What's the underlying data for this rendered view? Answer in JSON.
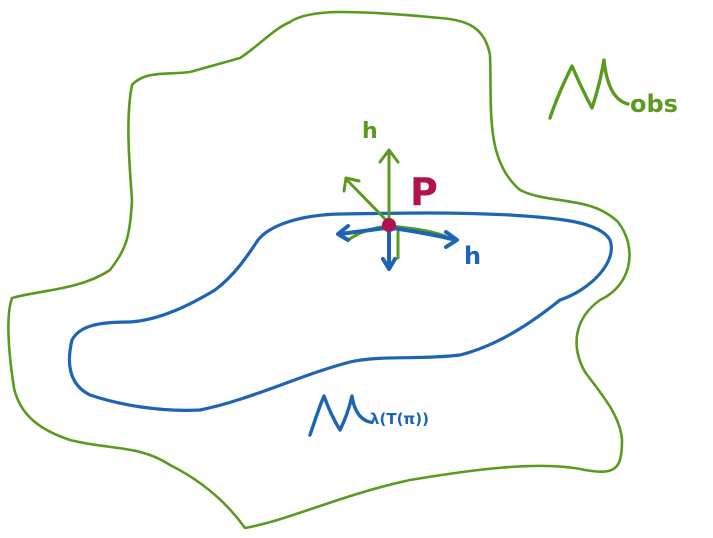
{
  "labels": {
    "obs_script": "N",
    "obs_sub": "obs",
    "point": "P",
    "h_up": "h",
    "h_right": "h",
    "inner_script": "N",
    "inner_sub": "λ(T(π))"
  },
  "colors": {
    "green": "#5a9a1e",
    "blue": "#1e64b4",
    "crimson": "#b0124f"
  }
}
